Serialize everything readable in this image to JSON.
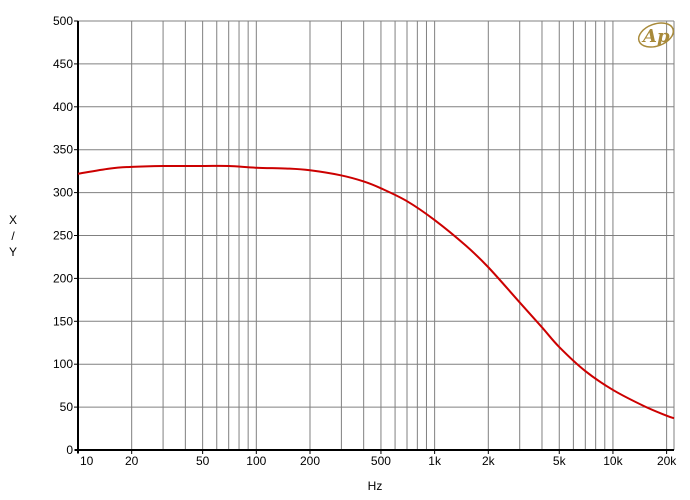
{
  "chart_data": {
    "type": "line",
    "xlabel": "Hz",
    "ylabel": "X / Y",
    "ylabel_lines": [
      "X",
      "/",
      "Y"
    ],
    "x_scale": "log",
    "xlim": [
      10,
      22000
    ],
    "ylim": [
      0,
      500
    ],
    "x_ticks": [
      {
        "value": 10,
        "label": "10"
      },
      {
        "value": 20,
        "label": "20"
      },
      {
        "value": 50,
        "label": "50"
      },
      {
        "value": 100,
        "label": "100"
      },
      {
        "value": 200,
        "label": "200"
      },
      {
        "value": 500,
        "label": "500"
      },
      {
        "value": 1000,
        "label": "1k"
      },
      {
        "value": 2000,
        "label": "2k"
      },
      {
        "value": 5000,
        "label": "5k"
      },
      {
        "value": 10000,
        "label": "10k"
      },
      {
        "value": 20000,
        "label": "20k"
      }
    ],
    "y_ticks": [
      0,
      50,
      100,
      150,
      200,
      250,
      300,
      350,
      400,
      450,
      500
    ],
    "grid": true,
    "series": [
      {
        "color": "#cc0000",
        "x": [
          10,
          15,
          20,
          30,
          50,
          70,
          100,
          150,
          200,
          300,
          400,
          500,
          700,
          1000,
          1500,
          2000,
          3000,
          4000,
          5000,
          7000,
          10000,
          15000,
          20000,
          22000
        ],
        "y": [
          322,
          328,
          330,
          331,
          331,
          331,
          329,
          328,
          326,
          320,
          313,
          305,
          290,
          268,
          238,
          213,
          172,
          143,
          120,
          92,
          70,
          51,
          40,
          37
        ]
      }
    ]
  },
  "logo": {
    "text": "Ap"
  },
  "colors": {
    "grid": "#808080",
    "curve": "#cc0000",
    "logo": "#a88a3a"
  }
}
